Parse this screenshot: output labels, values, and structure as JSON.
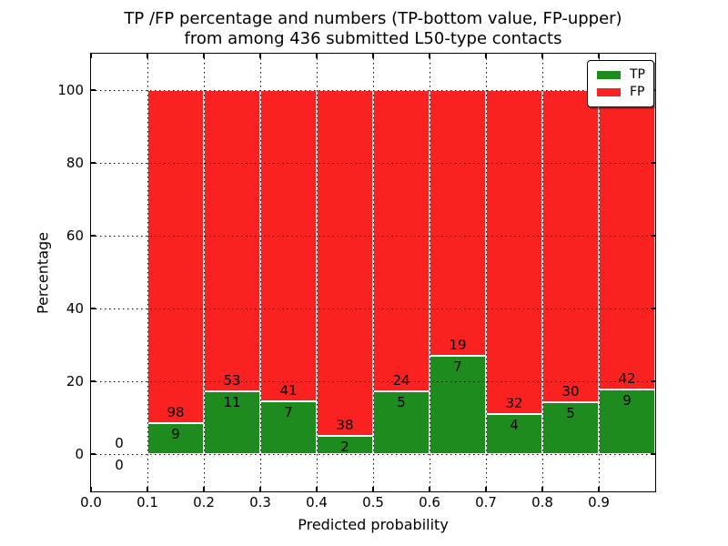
{
  "figure": {
    "title_line1": "TP /FP percentage and numbers (TP-bottom value, FP-upper)",
    "title_line2": "from among 436 submitted L50-type contacts"
  },
  "axes": {
    "xlabel": "Predicted probability",
    "ylabel": "Percentage",
    "xticks": [
      "0.0",
      "0.1",
      "0.2",
      "0.3",
      "0.4",
      "0.5",
      "0.6",
      "0.7",
      "0.8",
      "0.9"
    ],
    "yticks": [
      "0",
      "20",
      "40",
      "60",
      "80",
      "100"
    ]
  },
  "legend": {
    "items": [
      {
        "label": "TP",
        "color": "#1E8B1E"
      },
      {
        "label": "FP",
        "color": "#FA2121"
      }
    ]
  },
  "chart_data": {
    "type": "bar",
    "subtype": "stacked-100-percent",
    "title": "TP /FP percentage and numbers (TP-bottom value, FP-upper) from among 436 submitted L50-type contacts",
    "xlabel": "Predicted probability",
    "ylabel": "Percentage",
    "xlim": [
      0.0,
      1.0
    ],
    "ylim": [
      -10,
      110
    ],
    "grid": "dotted black, drawn over bars",
    "legend_position": "upper right",
    "bar_edge_color": "#FFFFFF",
    "total_contacts": 436,
    "bin_width": 0.1,
    "series": [
      {
        "name": "TP",
        "color": "#1E8B1E"
      },
      {
        "name": "FP",
        "color": "#FA2121"
      }
    ],
    "bins": [
      {
        "x_start": 0.0,
        "tp_count": 0,
        "fp_count": 0,
        "tp_percent": 0.0,
        "fp_percent": 0.0
      },
      {
        "x_start": 0.1,
        "tp_count": 9,
        "fp_count": 98,
        "tp_percent": 8.41,
        "fp_percent": 91.59
      },
      {
        "x_start": 0.2,
        "tp_count": 11,
        "fp_count": 53,
        "tp_percent": 17.19,
        "fp_percent": 82.81
      },
      {
        "x_start": 0.3,
        "tp_count": 7,
        "fp_count": 41,
        "tp_percent": 14.58,
        "fp_percent": 85.42
      },
      {
        "x_start": 0.4,
        "tp_count": 2,
        "fp_count": 38,
        "tp_percent": 5.0,
        "fp_percent": 95.0
      },
      {
        "x_start": 0.5,
        "tp_count": 5,
        "fp_count": 24,
        "tp_percent": 17.24,
        "fp_percent": 82.76
      },
      {
        "x_start": 0.6,
        "tp_count": 7,
        "fp_count": 19,
        "tp_percent": 26.92,
        "fp_percent": 73.08
      },
      {
        "x_start": 0.7,
        "tp_count": 4,
        "fp_count": 32,
        "tp_percent": 11.11,
        "fp_percent": 88.89
      },
      {
        "x_start": 0.8,
        "tp_count": 5,
        "fp_count": 30,
        "tp_percent": 14.29,
        "fp_percent": 85.71
      },
      {
        "x_start": 0.9,
        "tp_count": 9,
        "fp_count": 42,
        "tp_percent": 17.65,
        "fp_percent": 82.35
      }
    ]
  }
}
